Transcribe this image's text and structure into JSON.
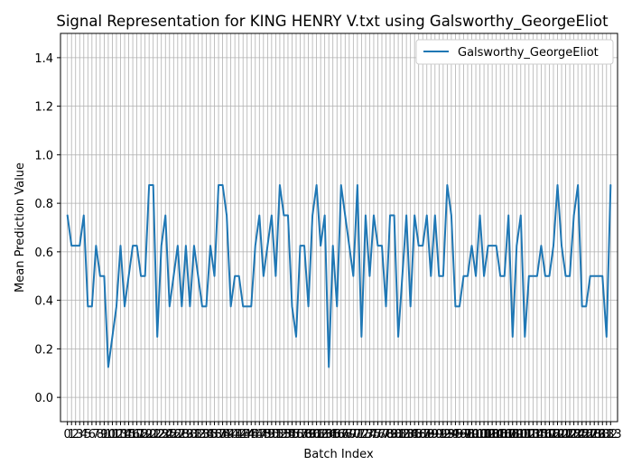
{
  "chart_data": {
    "type": "line",
    "title": "Signal Representation for KING HENRY V.txt using Galsworthy_GeorgeEliot",
    "xlabel": "Batch Index",
    "ylabel": "Mean Prediction Value",
    "ylim": [
      -0.1,
      1.5
    ],
    "xlim": [
      -1.7,
      134.7
    ],
    "grid": true,
    "legend_position": "top-right",
    "yticks": [
      0.0,
      0.2,
      0.4,
      0.6,
      0.8,
      1.0,
      1.2,
      1.4
    ],
    "yticklabels": [
      "0.0",
      "0.2",
      "0.4",
      "0.6",
      "0.8",
      "1.0",
      "1.2",
      "1.4"
    ],
    "series_color": "#1f77b4",
    "series": [
      {
        "name": "Galsworthy_GeorgeEliot",
        "x": [
          0,
          1,
          2,
          3,
          4,
          5,
          6,
          7,
          8,
          9,
          10,
          11,
          12,
          13,
          14,
          15,
          16,
          17,
          18,
          19,
          20,
          21,
          22,
          23,
          24,
          25,
          26,
          27,
          28,
          29,
          30,
          31,
          32,
          33,
          34,
          35,
          36,
          37,
          38,
          39,
          40,
          41,
          42,
          43,
          44,
          45,
          46,
          47,
          48,
          49,
          50,
          51,
          52,
          53,
          54,
          55,
          56,
          57,
          58,
          59,
          60,
          61,
          62,
          63,
          64,
          65,
          66,
          67,
          68,
          69,
          70,
          71,
          72,
          73,
          74,
          75,
          76,
          77,
          78,
          79,
          80,
          81,
          82,
          83,
          84,
          85,
          86,
          87,
          88,
          89,
          90,
          91,
          92,
          93,
          94,
          95,
          96,
          97,
          98,
          99,
          100,
          101,
          102,
          103,
          104,
          105,
          106,
          107,
          108,
          109,
          110,
          111,
          112,
          113,
          114,
          115,
          116,
          117,
          118,
          119,
          120,
          121,
          122,
          123,
          124,
          125,
          126,
          127,
          128,
          129,
          130,
          131,
          132,
          133
        ],
        "values": [
          0.75,
          0.625,
          0.625,
          0.625,
          0.75,
          0.375,
          0.375,
          0.625,
          0.5,
          0.5,
          0.125,
          0.25,
          0.375,
          0.625,
          0.375,
          0.5,
          0.625,
          0.625,
          0.5,
          0.5,
          0.875,
          0.875,
          0.25,
          0.625,
          0.75,
          0.375,
          0.5,
          0.625,
          0.375,
          0.625,
          0.375,
          0.625,
          0.5,
          0.375,
          0.375,
          0.625,
          0.5,
          0.875,
          0.875,
          0.75,
          0.375,
          0.5,
          0.5,
          0.375,
          0.375,
          0.375,
          0.625,
          0.75,
          0.5,
          0.625,
          0.75,
          0.5,
          0.875,
          0.75,
          0.75,
          0.375,
          0.25,
          0.625,
          0.625,
          0.375,
          0.75,
          0.875,
          0.625,
          0.75,
          0.125,
          0.625,
          0.375,
          0.875,
          0.75,
          0.625,
          0.5,
          0.875,
          0.25,
          0.75,
          0.5,
          0.75,
          0.625,
          0.625,
          0.375,
          0.75,
          0.75,
          0.25,
          0.5,
          0.75,
          0.375,
          0.75,
          0.625,
          0.625,
          0.75,
          0.5,
          0.75,
          0.5,
          0.5,
          0.875,
          0.75,
          0.375,
          0.375,
          0.5,
          0.5,
          0.625,
          0.5,
          0.75,
          0.5,
          0.625,
          0.625,
          0.625,
          0.5,
          0.5,
          0.75,
          0.25,
          0.625,
          0.75,
          0.25,
          0.5,
          0.5,
          0.5,
          0.625,
          0.5,
          0.5,
          0.625,
          0.875,
          0.625,
          0.5,
          0.5,
          0.75,
          0.875,
          0.375,
          0.375,
          0.5,
          0.5,
          0.5,
          0.5,
          0.25,
          0.875
        ]
      }
    ]
  }
}
